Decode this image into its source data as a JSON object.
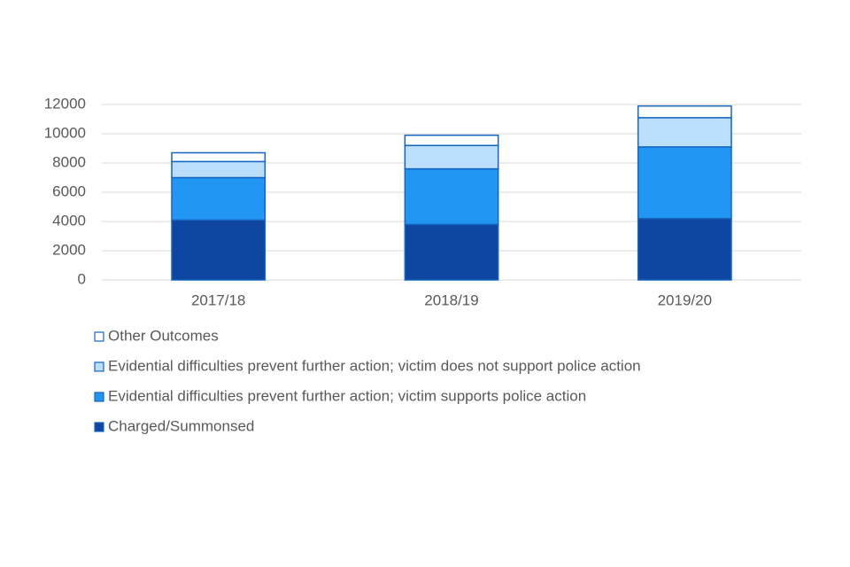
{
  "chart_data": {
    "type": "stacked_bar",
    "categories": [
      "2017/18",
      "2018/19",
      "2019/20"
    ],
    "series": [
      {
        "name": "Charged/Summonsed",
        "color": "#0d47a1",
        "values": [
          4100,
          3800,
          4200
        ]
      },
      {
        "name": "Evidential difficulties prevent further action; victim supports police action",
        "color": "#2196f3",
        "values": [
          2900,
          3800,
          4900
        ]
      },
      {
        "name": "Evidential difficulties prevent further action; victim does not support police action",
        "color": "#bbdefb",
        "values": [
          1100,
          1600,
          2000
        ]
      },
      {
        "name": "Other Outcomes",
        "color": "#ffffff",
        "values": [
          600,
          700,
          800
        ]
      }
    ],
    "ylim": [
      0,
      12000
    ],
    "yticks": [
      0,
      2000,
      4000,
      6000,
      8000,
      10000,
      12000
    ],
    "grid": true,
    "legend": "bottom"
  }
}
